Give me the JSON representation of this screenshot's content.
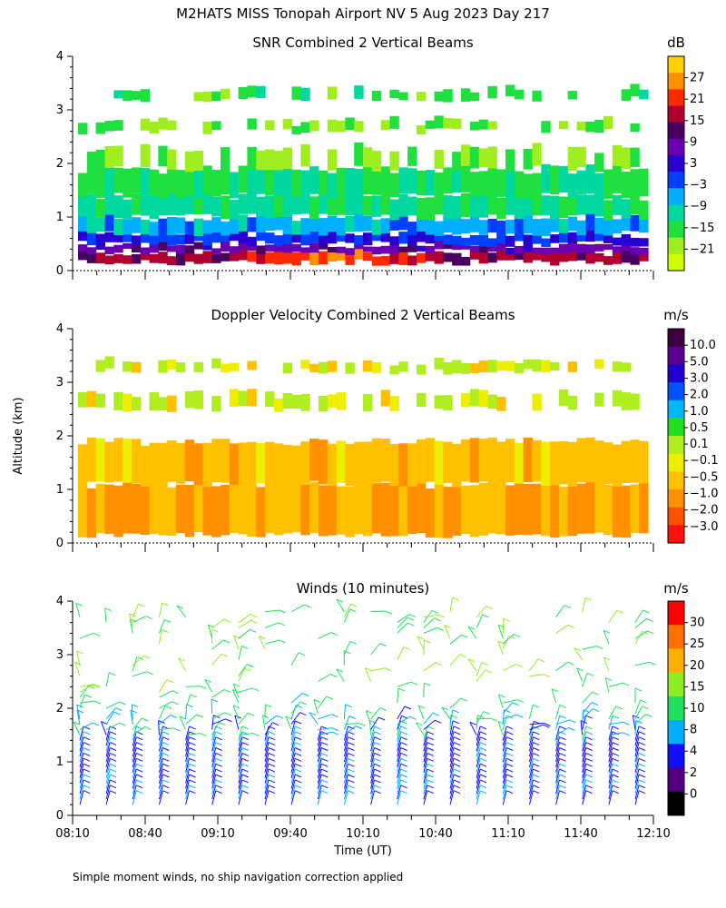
{
  "figure": {
    "title": "M2HATS MISS Tonopah Airport NV   5 Aug 2023 Day 217",
    "footnote": "Simple moment winds, no ship navigation correction applied",
    "ylabel": "Altitude (km)",
    "xlabel": "Time (UT)"
  },
  "chart_data": [
    {
      "type": "heatmap",
      "title": "SNR Combined 2 Vertical Beams",
      "x_range_hours": [
        8.1667,
        12.1667
      ],
      "ylim": [
        0,
        4
      ],
      "yticks": [
        0,
        1,
        2,
        3,
        4
      ],
      "colorbar": {
        "unit": "dB",
        "ticks": [
          "27",
          "21",
          "15",
          "9",
          "3",
          "−3",
          "−9",
          "−15",
          "−21"
        ],
        "colors": [
          "#ffd000",
          "#ff9000",
          "#ff2a00",
          "#b00030",
          "#4a0060",
          "#6a00b0",
          "#2a00d0",
          "#0040ff",
          "#00b0ff",
          "#00d8a0",
          "#20e040",
          "#a0ee20",
          "#ccff00"
        ]
      },
      "layers": [
        {
          "bottom": 0.15,
          "top": 0.35,
          "value": 12
        },
        {
          "bottom": 0.35,
          "top": 0.5,
          "value": 5
        },
        {
          "bottom": 0.5,
          "top": 0.7,
          "value": -3
        },
        {
          "bottom": 0.7,
          "top": 1.0,
          "value": -9
        },
        {
          "bottom": 1.0,
          "top": 1.4,
          "value": -15
        },
        {
          "bottom": 1.4,
          "top": 1.9,
          "value": -17
        },
        {
          "bottom": 1.9,
          "top": 2.3,
          "value": -20
        },
        {
          "bottom": 2.6,
          "top": 2.8,
          "value": -20
        },
        {
          "bottom": 3.2,
          "top": 3.4,
          "value": -18
        }
      ]
    },
    {
      "type": "heatmap",
      "title": "Doppler Velocity Combined 2 Vertical Beams",
      "x_range_hours": [
        8.1667,
        12.1667
      ],
      "ylim": [
        0,
        4
      ],
      "yticks": [
        0,
        1,
        2,
        3,
        4
      ],
      "colorbar": {
        "unit": "m/s",
        "ticks": [
          "10.0",
          "5.0",
          "3.0",
          "2.0",
          "1.0",
          "0.5",
          "0.1",
          "−0.1",
          "−0.5",
          "−1.0",
          "−2.0",
          "−3.0"
        ],
        "colors": [
          "#3a0040",
          "#5a0090",
          "#2000d0",
          "#0050ff",
          "#00b8ff",
          "#20e020",
          "#b0ee20",
          "#eeee00",
          "#ffc000",
          "#ff9000",
          "#ff5000",
          "#ff1010"
        ]
      },
      "layers": [
        {
          "bottom": 0.15,
          "top": 1.1,
          "value": -0.5
        },
        {
          "bottom": 1.1,
          "top": 1.9,
          "value": -0.3
        },
        {
          "bottom": 2.5,
          "top": 2.8,
          "value": 0.1
        },
        {
          "bottom": 3.2,
          "top": 3.4,
          "value": 0.1
        }
      ]
    },
    {
      "type": "scatter",
      "title": "Winds (10 minutes)",
      "x_range_hours": [
        8.1667,
        12.1667
      ],
      "ylim": [
        0,
        4
      ],
      "yticks": [
        0,
        1,
        2,
        3,
        4
      ],
      "xticks": [
        "08:10",
        "08:40",
        "09:10",
        "09:40",
        "10:10",
        "10:40",
        "11:10",
        "11:40",
        "12:10"
      ],
      "colorbar": {
        "unit": "m/s",
        "ticks": [
          "30",
          "25",
          "20",
          "15",
          "10",
          "8",
          "4",
          "2",
          "0"
        ],
        "colors": [
          "#ff0000",
          "#ff7000",
          "#ffb000",
          "#90ee20",
          "#20e060",
          "#00b0ff",
          "#1010ff",
          "#500080",
          "#000000"
        ]
      },
      "barb_columns": 22,
      "speed_profile": [
        {
          "altitude_km": 0.5,
          "speed_ms": 7
        },
        {
          "altitude_km": 1.0,
          "speed_ms": 6
        },
        {
          "altitude_km": 1.5,
          "speed_ms": 8
        },
        {
          "altitude_km": 2.0,
          "speed_ms": 12
        },
        {
          "altitude_km": 2.7,
          "speed_ms": 16
        },
        {
          "altitude_km": 3.5,
          "speed_ms": 14
        }
      ]
    }
  ]
}
